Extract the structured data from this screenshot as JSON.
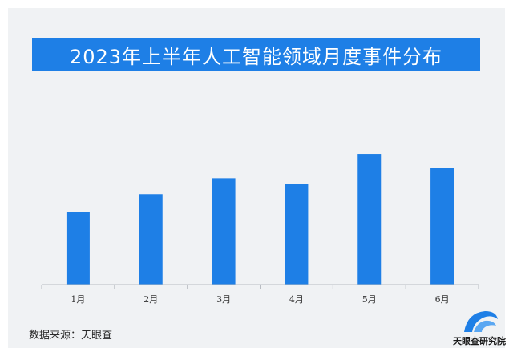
{
  "title": "2023年上半年人工智能领域月度事件分布",
  "source_text": "数据来源：天眼查",
  "brand": {
    "name": "天眼查研究院",
    "logo_icon": "tianyancha-logo-icon"
  },
  "colors": {
    "accent": "#1e7fe6",
    "bar": "#1e7fe6",
    "background": "#f0f2f4",
    "axis": "#b8bcc2"
  },
  "chart_data": {
    "type": "bar",
    "title": "2023年上半年人工智能领域月度事件分布",
    "xlabel": "",
    "ylabel": "",
    "categories": [
      "1月",
      "2月",
      "3月",
      "4月",
      "5月",
      "6月"
    ],
    "values": [
      96,
      119,
      140,
      132,
      172,
      154
    ],
    "ylim": [
      0,
      190
    ],
    "grid": false,
    "legend": "none",
    "y_ticks_shown": false
  }
}
